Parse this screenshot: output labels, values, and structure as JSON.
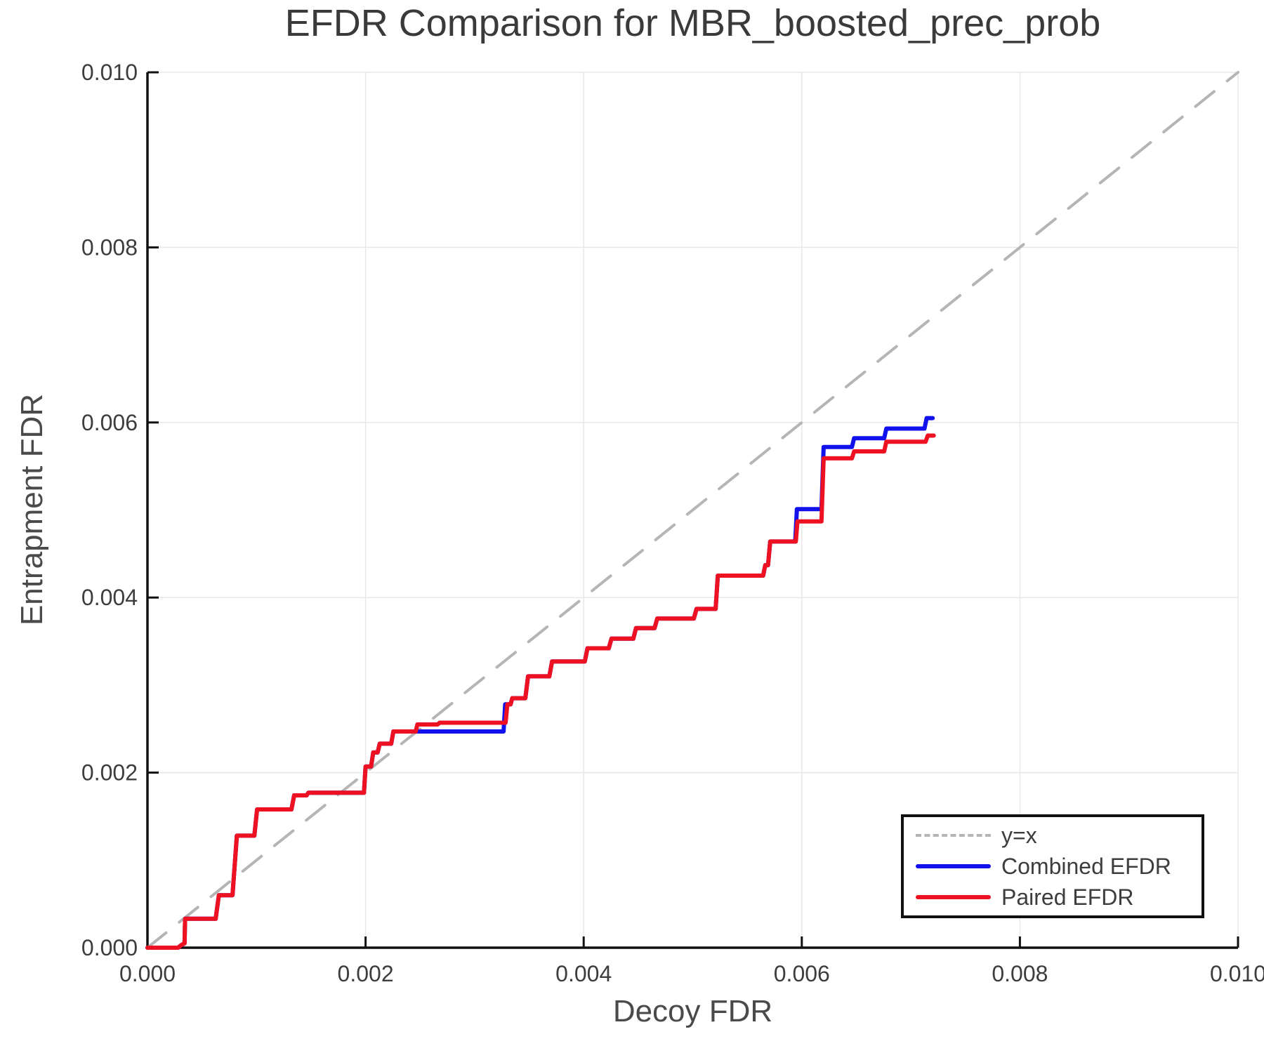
{
  "chart": {
    "title": "EFDR Comparison for MBR_boosted_prec_prob",
    "xlabel": "Decoy FDR",
    "ylabel": "Entrapment FDR",
    "legend": {
      "items": [
        {
          "label": "y=x"
        },
        {
          "label": "Combined EFDR"
        },
        {
          "label": "Paired EFDR"
        }
      ]
    }
  },
  "chart_data": {
    "type": "line",
    "title": "EFDR Comparison for MBR_boosted_prec_prob",
    "xlabel": "Decoy FDR",
    "ylabel": "Entrapment FDR",
    "xlim": [
      0.0,
      0.01
    ],
    "ylim": [
      0.0,
      0.01
    ],
    "xticks": [
      0.0,
      0.002,
      0.004,
      0.006,
      0.008,
      0.01
    ],
    "xtick_labels": [
      "0.000",
      "0.002",
      "0.004",
      "0.006",
      "0.008",
      "0.010"
    ],
    "yticks": [
      0.0,
      0.002,
      0.004,
      0.006,
      0.008,
      0.01
    ],
    "ytick_labels": [
      "0.000",
      "0.002",
      "0.004",
      "0.006",
      "0.008",
      "0.010"
    ],
    "grid": true,
    "grid_color": "#e8e8e8",
    "spine_color": "#111111",
    "tick_label_color": "#3d3d3d",
    "legend_position": "lower right",
    "series": [
      {
        "name": "y=x",
        "style": "dashed",
        "color": "#b5b5b5",
        "width": 4,
        "points": [
          [
            0.0,
            0.0
          ],
          [
            0.01,
            0.01
          ]
        ]
      },
      {
        "name": "Combined EFDR",
        "style": "solid",
        "color": "#1111ee",
        "width": 6,
        "points": [
          [
            0.0,
            0.0
          ],
          [
            0.00028,
            0.0
          ],
          [
            0.00031,
            3e-05
          ],
          [
            0.00034,
            5e-05
          ],
          [
            0.000345,
            0.00033
          ],
          [
            0.000625,
            0.00033
          ],
          [
            0.000655,
            0.0006
          ],
          [
            0.00078,
            0.0006
          ],
          [
            0.00082,
            0.00128
          ],
          [
            0.00098,
            0.00128
          ],
          [
            0.001005,
            0.00158
          ],
          [
            0.00132,
            0.00158
          ],
          [
            0.001345,
            0.00174
          ],
          [
            0.00146,
            0.00174
          ],
          [
            0.001475,
            0.00177
          ],
          [
            0.001985,
            0.00177
          ],
          [
            0.002,
            0.00207
          ],
          [
            0.00205,
            0.00207
          ],
          [
            0.00207,
            0.00223
          ],
          [
            0.00211,
            0.00223
          ],
          [
            0.00213,
            0.00233
          ],
          [
            0.002235,
            0.00233
          ],
          [
            0.002255,
            0.00247
          ],
          [
            0.003265,
            0.00247
          ],
          [
            0.00328,
            0.00278
          ],
          [
            0.00333,
            0.00278
          ],
          [
            0.003345,
            0.00285
          ],
          [
            0.003465,
            0.00285
          ],
          [
            0.00349,
            0.0031
          ],
          [
            0.003685,
            0.0031
          ],
          [
            0.00371,
            0.00327
          ],
          [
            0.00401,
            0.00327
          ],
          [
            0.004035,
            0.00342
          ],
          [
            0.00423,
            0.00342
          ],
          [
            0.004255,
            0.00353
          ],
          [
            0.004455,
            0.00353
          ],
          [
            0.00448,
            0.00365
          ],
          [
            0.00465,
            0.00365
          ],
          [
            0.004675,
            0.00376
          ],
          [
            0.00501,
            0.00376
          ],
          [
            0.005035,
            0.00387
          ],
          [
            0.00521,
            0.00387
          ],
          [
            0.00523,
            0.00425
          ],
          [
            0.005645,
            0.00425
          ],
          [
            0.005665,
            0.00437
          ],
          [
            0.00569,
            0.00437
          ],
          [
            0.00571,
            0.00464
          ],
          [
            0.00594,
            0.00464
          ],
          [
            0.005955,
            0.00501
          ],
          [
            0.00618,
            0.00501
          ],
          [
            0.0062,
            0.00572
          ],
          [
            0.00646,
            0.00572
          ],
          [
            0.00648,
            0.00582
          ],
          [
            0.006755,
            0.00582
          ],
          [
            0.006775,
            0.00593
          ],
          [
            0.007125,
            0.00593
          ],
          [
            0.007145,
            0.00605
          ],
          [
            0.0072,
            0.00605
          ]
        ]
      },
      {
        "name": "Paired EFDR",
        "style": "solid",
        "color": "#ee1122",
        "width": 6,
        "points": [
          [
            0.0,
            0.0
          ],
          [
            0.00028,
            0.0
          ],
          [
            0.00031,
            3e-05
          ],
          [
            0.00034,
            5e-05
          ],
          [
            0.000345,
            0.00033
          ],
          [
            0.000625,
            0.00033
          ],
          [
            0.000655,
            0.0006
          ],
          [
            0.00078,
            0.0006
          ],
          [
            0.00082,
            0.00128
          ],
          [
            0.00098,
            0.00128
          ],
          [
            0.001005,
            0.00158
          ],
          [
            0.00132,
            0.00158
          ],
          [
            0.001345,
            0.00174
          ],
          [
            0.00146,
            0.00174
          ],
          [
            0.001475,
            0.00177
          ],
          [
            0.001985,
            0.00177
          ],
          [
            0.002,
            0.00207
          ],
          [
            0.00205,
            0.00207
          ],
          [
            0.00207,
            0.00223
          ],
          [
            0.00211,
            0.00223
          ],
          [
            0.00213,
            0.00233
          ],
          [
            0.002235,
            0.00233
          ],
          [
            0.002255,
            0.00247
          ],
          [
            0.00246,
            0.00247
          ],
          [
            0.002475,
            0.00255
          ],
          [
            0.00266,
            0.00255
          ],
          [
            0.00268,
            0.00257
          ],
          [
            0.003284,
            0.00257
          ],
          [
            0.0033,
            0.00278
          ],
          [
            0.00333,
            0.00278
          ],
          [
            0.003345,
            0.00285
          ],
          [
            0.003465,
            0.00285
          ],
          [
            0.00349,
            0.0031
          ],
          [
            0.003685,
            0.0031
          ],
          [
            0.00371,
            0.00327
          ],
          [
            0.00401,
            0.00327
          ],
          [
            0.004035,
            0.00342
          ],
          [
            0.00423,
            0.00342
          ],
          [
            0.004255,
            0.00353
          ],
          [
            0.004455,
            0.00353
          ],
          [
            0.00448,
            0.00365
          ],
          [
            0.00465,
            0.00365
          ],
          [
            0.004675,
            0.00376
          ],
          [
            0.00501,
            0.00376
          ],
          [
            0.005035,
            0.00387
          ],
          [
            0.00521,
            0.00387
          ],
          [
            0.00523,
            0.00425
          ],
          [
            0.005645,
            0.00425
          ],
          [
            0.005665,
            0.00437
          ],
          [
            0.00569,
            0.00437
          ],
          [
            0.00571,
            0.00464
          ],
          [
            0.005945,
            0.00464
          ],
          [
            0.00596,
            0.00487
          ],
          [
            0.00618,
            0.00487
          ],
          [
            0.0062,
            0.00559
          ],
          [
            0.00646,
            0.00559
          ],
          [
            0.00648,
            0.00567
          ],
          [
            0.006755,
            0.00567
          ],
          [
            0.006775,
            0.00578
          ],
          [
            0.007135,
            0.00578
          ],
          [
            0.007155,
            0.00585
          ],
          [
            0.00721,
            0.00585
          ]
        ]
      }
    ]
  }
}
